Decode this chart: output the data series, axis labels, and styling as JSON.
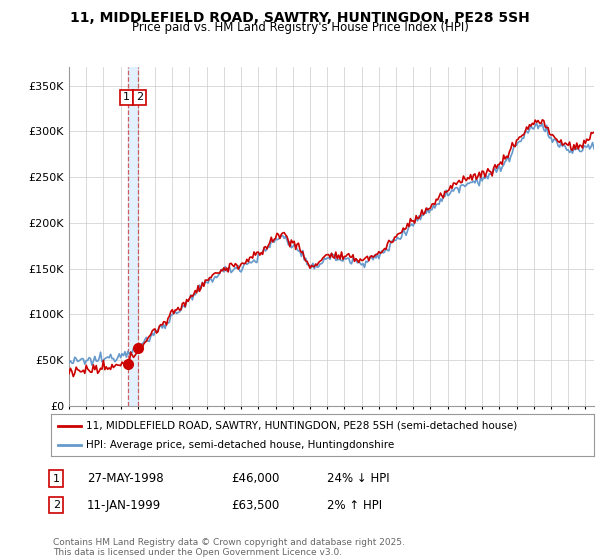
{
  "title1": "11, MIDDLEFIELD ROAD, SAWTRY, HUNTINGDON, PE28 5SH",
  "title2": "Price paid vs. HM Land Registry's House Price Index (HPI)",
  "ytick_values": [
    0,
    50000,
    100000,
    150000,
    200000,
    250000,
    300000,
    350000
  ],
  "ylim": [
    0,
    370000
  ],
  "xlim_start": 1995.0,
  "xlim_end": 2025.5,
  "sale1_date": 1998.41,
  "sale1_price": 46000,
  "sale2_date": 1999.03,
  "sale2_price": 63500,
  "legend_line1": "11, MIDDLEFIELD ROAD, SAWTRY, HUNTINGDON, PE28 5SH (semi-detached house)",
  "legend_line2": "HPI: Average price, semi-detached house, Huntingdonshire",
  "footer": "Contains HM Land Registry data © Crown copyright and database right 2025.\nThis data is licensed under the Open Government Licence v3.0.",
  "line_color_red": "#cc0000",
  "line_color_blue": "#6699cc",
  "dashed_color": "#cc4444",
  "shade_color": "#ddeeff",
  "background_color": "#ffffff",
  "grid_color": "#cccccc"
}
